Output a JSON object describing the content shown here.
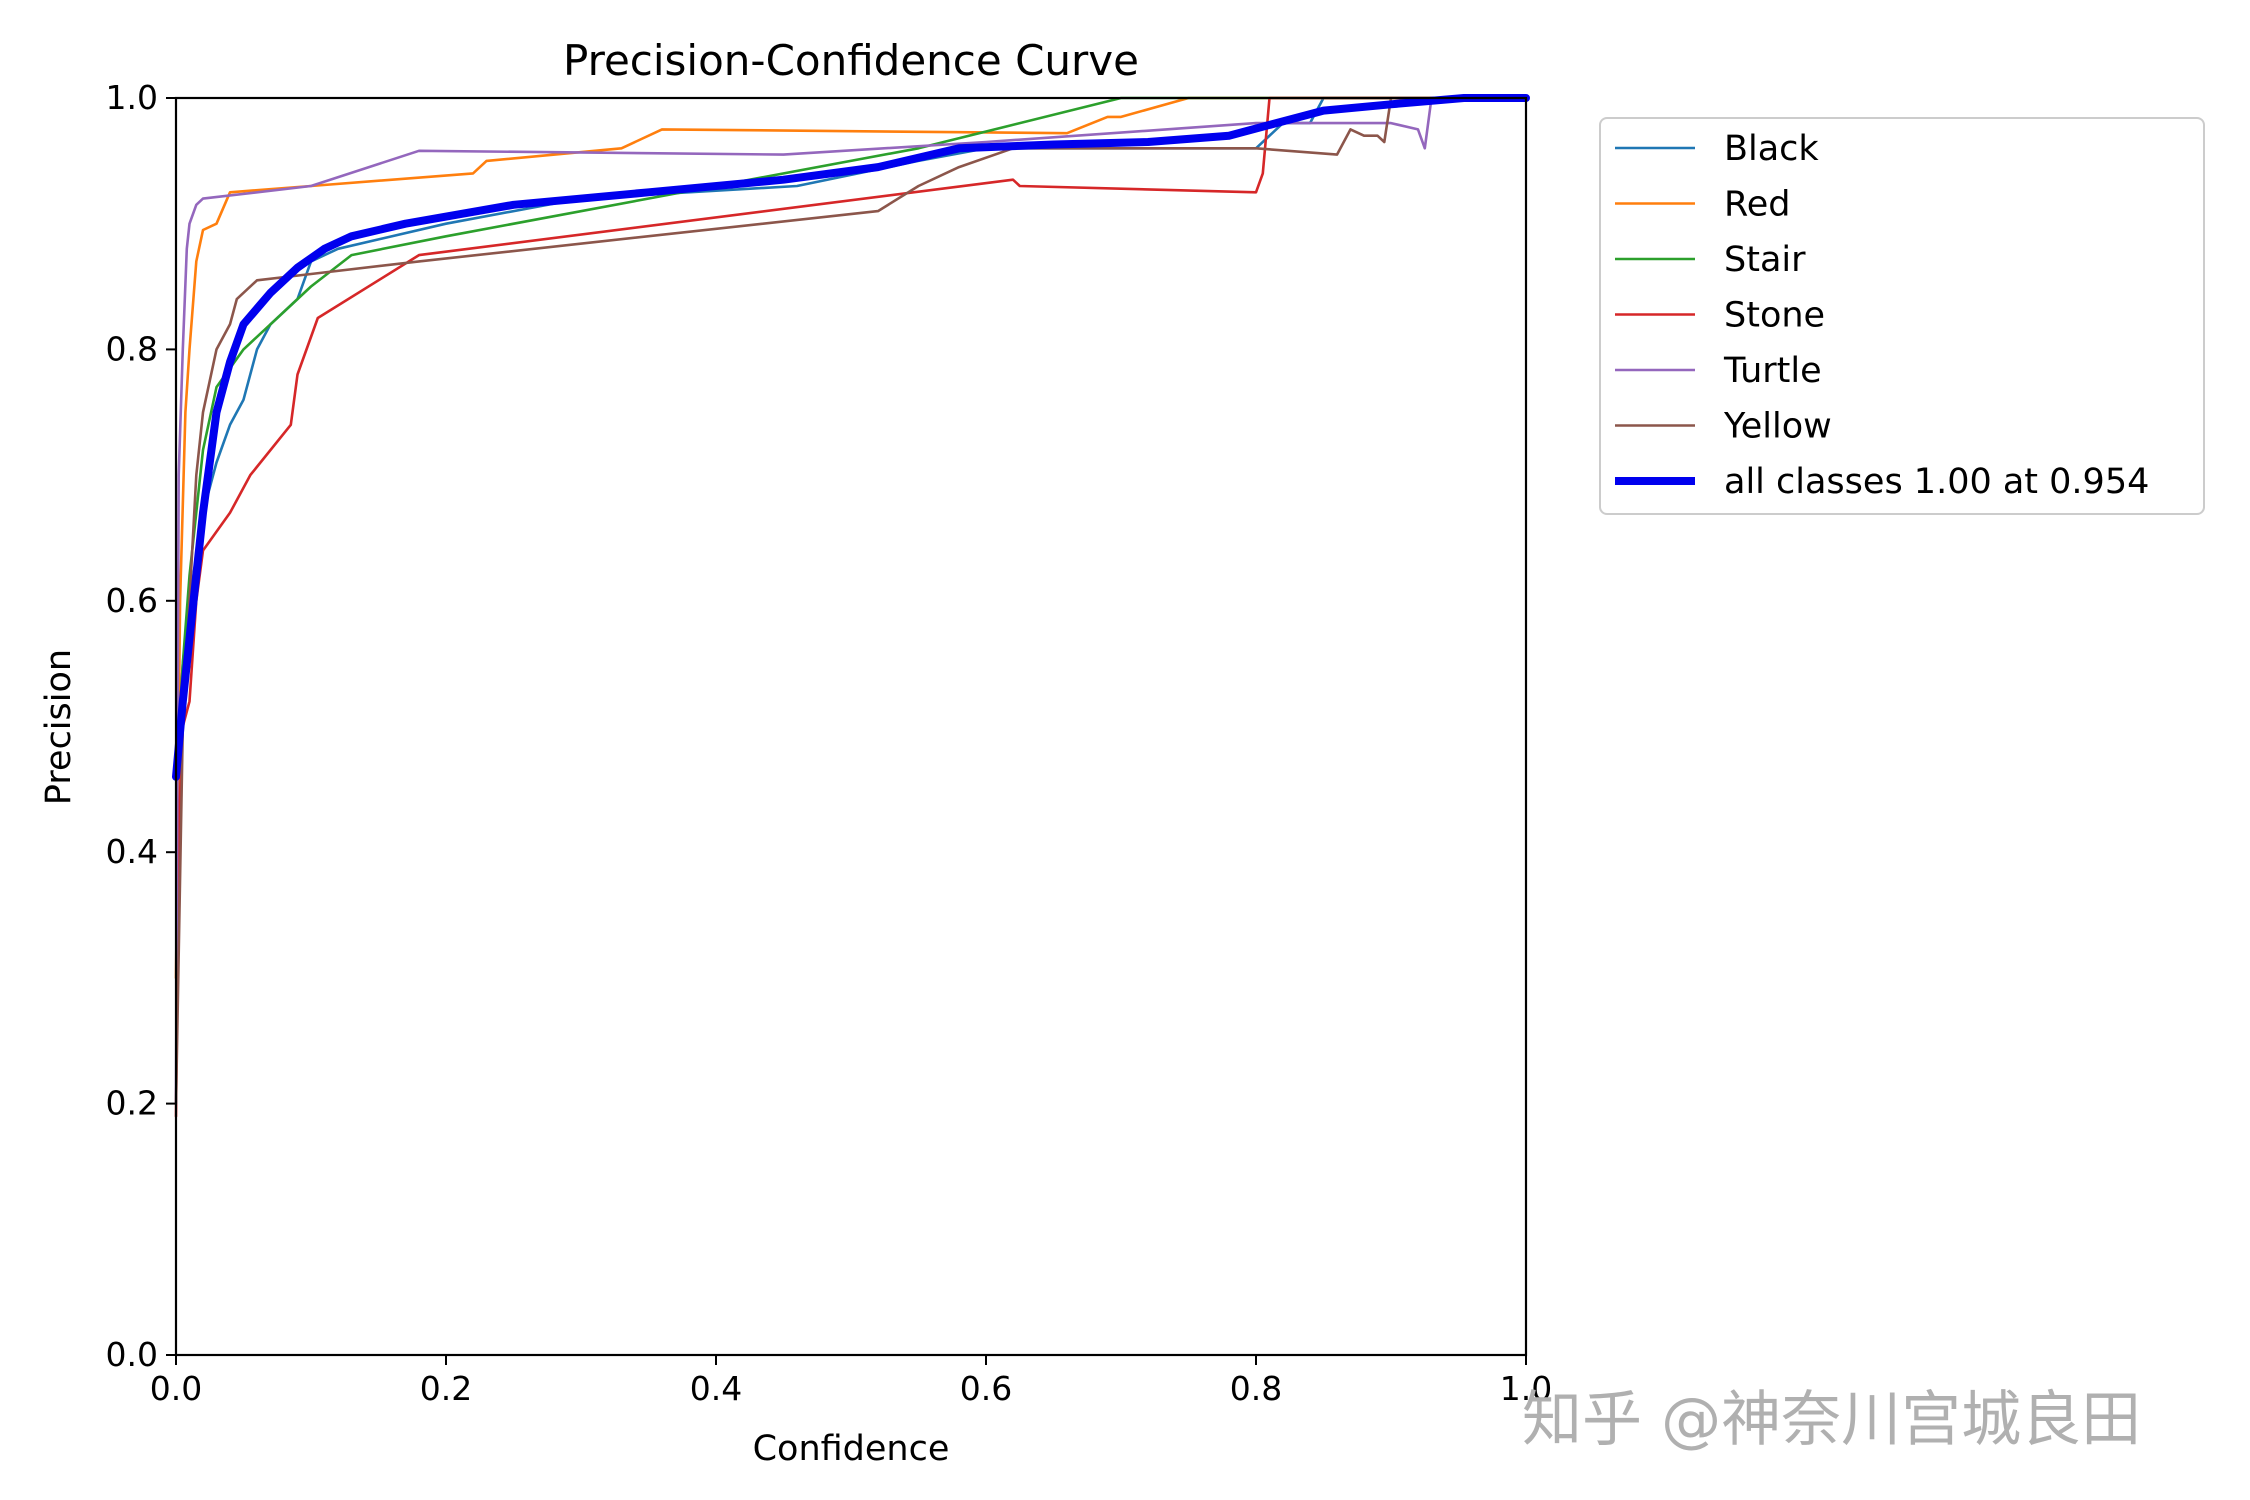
{
  "chart_data": {
    "type": "line",
    "title": "Precision-Confidence Curve",
    "xlabel": "Confidence",
    "ylabel": "Precision",
    "xlim": [
      0,
      1
    ],
    "ylim": [
      0,
      1
    ],
    "xticks": [
      "0.0",
      "0.2",
      "0.4",
      "0.6",
      "0.8",
      "1.0"
    ],
    "yticks": [
      "0.0",
      "0.2",
      "0.4",
      "0.6",
      "0.8",
      "1.0"
    ],
    "grid": false,
    "legend_position": "outside-top-right",
    "series": [
      {
        "name": "Black",
        "color": "#1f77b4",
        "x": [
          0.0,
          0.005,
          0.01,
          0.02,
          0.03,
          0.04,
          0.05,
          0.06,
          0.07,
          0.08,
          0.09,
          0.1,
          0.12,
          0.2,
          0.3,
          0.46,
          0.55,
          0.6,
          0.7,
          0.8,
          0.82,
          0.84,
          0.85,
          0.9,
          1.0
        ],
        "y": [
          0.46,
          0.55,
          0.6,
          0.67,
          0.71,
          0.74,
          0.76,
          0.8,
          0.82,
          0.83,
          0.84,
          0.87,
          0.88,
          0.9,
          0.92,
          0.93,
          0.95,
          0.96,
          0.96,
          0.96,
          0.98,
          0.98,
          1.0,
          1.0,
          1.0
        ]
      },
      {
        "name": "Red",
        "color": "#ff7f0e",
        "x": [
          0.0,
          0.003,
          0.007,
          0.01,
          0.015,
          0.02,
          0.03,
          0.04,
          0.1,
          0.22,
          0.23,
          0.33,
          0.36,
          0.66,
          0.69,
          0.7,
          0.75,
          1.0
        ],
        "y": [
          0.3,
          0.6,
          0.75,
          0.8,
          0.87,
          0.895,
          0.9,
          0.925,
          0.93,
          0.94,
          0.95,
          0.96,
          0.975,
          0.972,
          0.985,
          0.985,
          1.0,
          1.0
        ]
      },
      {
        "name": "Stair",
        "color": "#2ca02c",
        "x": [
          0.0,
          0.005,
          0.01,
          0.02,
          0.03,
          0.05,
          0.07,
          0.1,
          0.13,
          0.2,
          0.4,
          0.55,
          0.7,
          1.0
        ],
        "y": [
          0.46,
          0.55,
          0.62,
          0.72,
          0.77,
          0.8,
          0.82,
          0.85,
          0.875,
          0.89,
          0.93,
          0.96,
          1.0,
          1.0
        ]
      },
      {
        "name": "Stone",
        "color": "#d62728",
        "x": [
          0.0,
          0.002,
          0.005,
          0.01,
          0.015,
          0.02,
          0.04,
          0.055,
          0.085,
          0.09,
          0.105,
          0.18,
          0.62,
          0.625,
          0.8,
          0.805,
          0.81,
          1.0
        ],
        "y": [
          0.19,
          0.42,
          0.5,
          0.52,
          0.6,
          0.64,
          0.67,
          0.7,
          0.74,
          0.78,
          0.825,
          0.875,
          0.935,
          0.93,
          0.925,
          0.94,
          1.0,
          1.0
        ]
      },
      {
        "name": "Turtle",
        "color": "#9467bd",
        "x": [
          0.0,
          0.002,
          0.005,
          0.008,
          0.01,
          0.015,
          0.02,
          0.1,
          0.18,
          0.45,
          0.6,
          0.8,
          0.9,
          0.92,
          0.925,
          0.93,
          1.0
        ],
        "y": [
          0.2,
          0.7,
          0.8,
          0.88,
          0.9,
          0.915,
          0.92,
          0.93,
          0.958,
          0.955,
          0.965,
          0.98,
          0.98,
          0.975,
          0.96,
          1.0,
          1.0
        ]
      },
      {
        "name": "Yellow",
        "color": "#8c564b",
        "x": [
          0.0,
          0.005,
          0.01,
          0.015,
          0.02,
          0.03,
          0.04,
          0.045,
          0.06,
          0.1,
          0.18,
          0.52,
          0.55,
          0.58,
          0.62,
          0.8,
          0.86,
          0.87,
          0.88,
          0.89,
          0.895,
          0.9,
          1.0
        ],
        "y": [
          0.2,
          0.5,
          0.6,
          0.7,
          0.75,
          0.8,
          0.82,
          0.84,
          0.855,
          0.86,
          0.87,
          0.91,
          0.93,
          0.945,
          0.96,
          0.96,
          0.955,
          0.975,
          0.97,
          0.97,
          0.965,
          1.0,
          1.0
        ]
      },
      {
        "name": "all classes 1.00 at 0.954",
        "color": "#0000ee",
        "thick": true,
        "x": [
          0.0,
          0.005,
          0.01,
          0.02,
          0.03,
          0.04,
          0.05,
          0.07,
          0.09,
          0.11,
          0.13,
          0.17,
          0.25,
          0.35,
          0.45,
          0.52,
          0.58,
          0.65,
          0.72,
          0.78,
          0.85,
          0.9,
          0.954,
          1.0
        ],
        "y": [
          0.46,
          0.52,
          0.57,
          0.67,
          0.75,
          0.79,
          0.82,
          0.845,
          0.865,
          0.88,
          0.89,
          0.9,
          0.915,
          0.925,
          0.935,
          0.945,
          0.96,
          0.963,
          0.965,
          0.97,
          0.99,
          0.995,
          1.0,
          1.0
        ]
      }
    ]
  },
  "watermark": {
    "text": "知乎 @神奈川宫城良田"
  }
}
